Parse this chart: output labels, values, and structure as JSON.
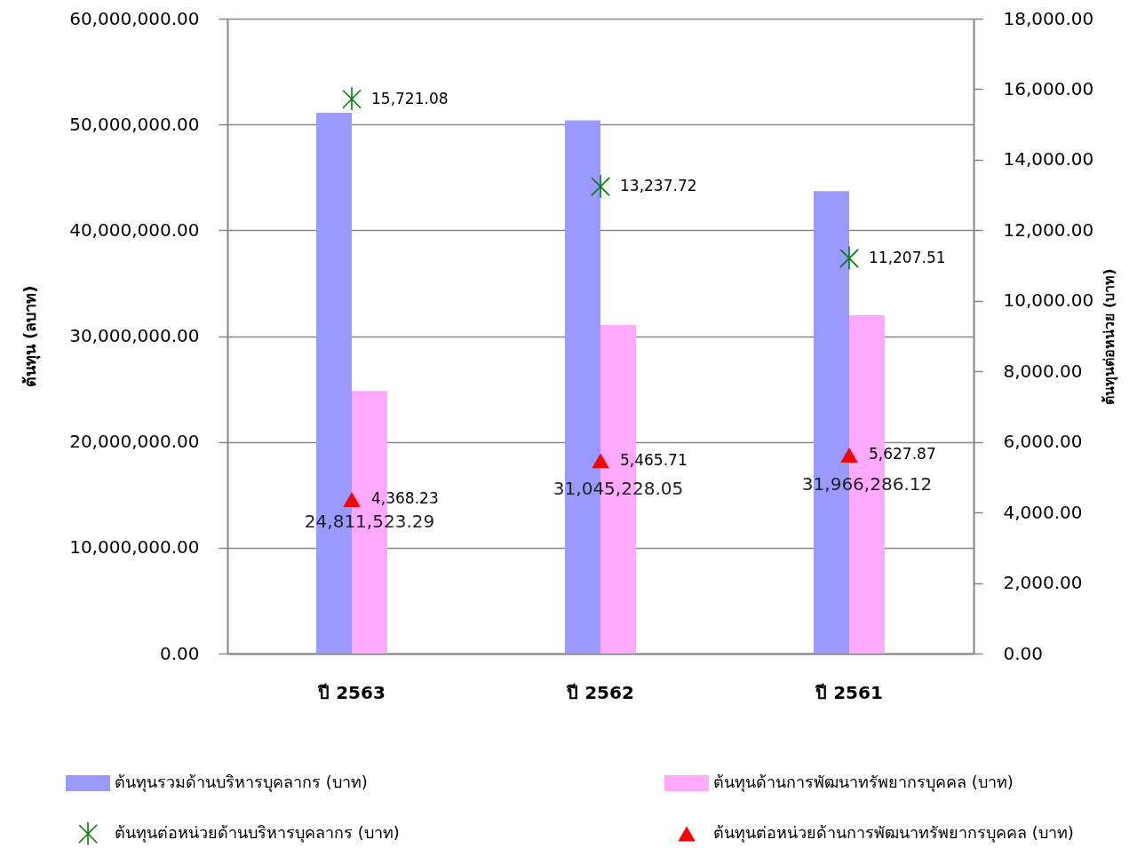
{
  "chart_data": {
    "type": "bar",
    "categories": [
      "ปี 2563",
      "ปี 2562",
      "ปี 2561"
    ],
    "ylabel": "ต้นทุน (ลบาท)",
    "y2label": "ต้นทุนต่อหน่วย (บาท)",
    "ylim": [
      0,
      60000000
    ],
    "yticks": [
      {
        "value": 0,
        "label": "0.00"
      },
      {
        "value": 10000000,
        "label": "10,000,000.00"
      },
      {
        "value": 20000000,
        "label": "20,000,000.00"
      },
      {
        "value": 30000000,
        "label": "30,000,000.00"
      },
      {
        "value": 40000000,
        "label": "40,000,000.00"
      },
      {
        "value": 50000000,
        "label": "50,000,000.00"
      },
      {
        "value": 60000000,
        "label": "60,000,000.00"
      }
    ],
    "y2lim": [
      0,
      18000
    ],
    "y2ticks": [
      {
        "value": 0,
        "label": "0.00"
      },
      {
        "value": 2000,
        "label": "2,000.00"
      },
      {
        "value": 4000,
        "label": "4,000.00"
      },
      {
        "value": 6000,
        "label": "6,000.00"
      },
      {
        "value": 8000,
        "label": "8,000.00"
      },
      {
        "value": 10000,
        "label": "10,000.00"
      },
      {
        "value": 12000,
        "label": "12,000.00"
      },
      {
        "value": 14000,
        "label": "14,000.00"
      },
      {
        "value": 16000,
        "label": "16,000.00"
      },
      {
        "value": 18000,
        "label": "18,000.00"
      }
    ],
    "grid": "y",
    "legend": "bottom",
    "series": [
      {
        "name": "ต้นทุนรวมด้านบริหารบุคลากร (บาท)",
        "color": "#9999ff",
        "values": [
          51100000,
          50400000,
          43700000
        ]
      },
      {
        "name": "ต้นทุนด้านการพัฒนาทรัพยากรบุคคล (บาท)",
        "color": "#ffaaff",
        "values": [
          24811523.29,
          31045228.05,
          31966286.12
        ],
        "value_labels": [
          "24,811,523.29",
          "31,045,228.05",
          "31,966,286.12"
        ]
      },
      {
        "name": "ต้นทุนต่อหน่วยด้านบริหารบุคลากร (บาท)",
        "type": "scatter",
        "axis": "y2",
        "marker": "cross",
        "color": "#008000",
        "values": [
          15721.08,
          13237.72,
          11207.51
        ],
        "value_labels": [
          "15,721.08",
          "13,237.72",
          "11,207.51"
        ]
      },
      {
        "name": "ต้นทุนต่อหน่วยด้านการพัฒนาทรัพยากรบุคคล (บาท)",
        "type": "scatter",
        "axis": "y2",
        "marker": "triangle",
        "color": "#ff0000",
        "values": [
          4368.23,
          5465.71,
          5627.87
        ],
        "value_labels": [
          "4,368.23",
          "5,465.71",
          "5,627.87"
        ]
      }
    ]
  }
}
